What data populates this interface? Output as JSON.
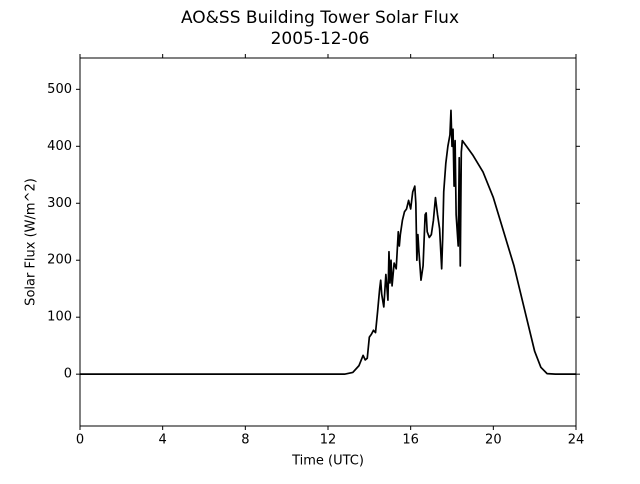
{
  "chart_data": {
    "type": "line",
    "title": "AO&SS Building Tower Solar Flux",
    "subtitle": "2005-12-06",
    "x_label": "Time (UTC)",
    "y_label": "Solar Flux (W/m^2)",
    "x": [
      0,
      12,
      12.8,
      13.2,
      13.5,
      13.7,
      13.8,
      13.9,
      14.0,
      14.1,
      14.2,
      14.3,
      14.4,
      14.5,
      14.55,
      14.6,
      14.7,
      14.8,
      14.9,
      14.95,
      15.0,
      15.05,
      15.1,
      15.2,
      15.3,
      15.4,
      15.45,
      15.5,
      15.6,
      15.7,
      15.8,
      15.9,
      16.0,
      16.1,
      16.2,
      16.25,
      16.3,
      16.35,
      16.4,
      16.5,
      16.6,
      16.7,
      16.75,
      16.8,
      16.9,
      17.0,
      17.1,
      17.2,
      17.3,
      17.4,
      17.5,
      17.55,
      17.6,
      17.7,
      17.8,
      17.9,
      17.95,
      18.0,
      18.05,
      18.1,
      18.15,
      18.2,
      18.3,
      18.35,
      18.4,
      18.45,
      18.5,
      18.7,
      19.0,
      19.5,
      20.0,
      20.5,
      21.0,
      21.5,
      22.0,
      22.3,
      22.6,
      23.0,
      24
    ],
    "values": [
      0,
      0,
      0,
      3,
      15,
      33,
      25,
      28,
      65,
      70,
      77,
      73,
      110,
      150,
      165,
      140,
      118,
      175,
      130,
      215,
      160,
      200,
      155,
      195,
      185,
      250,
      225,
      245,
      270,
      285,
      290,
      305,
      290,
      320,
      330,
      300,
      200,
      245,
      215,
      165,
      190,
      280,
      283,
      250,
      240,
      245,
      270,
      310,
      280,
      255,
      185,
      240,
      320,
      370,
      400,
      420,
      463,
      400,
      430,
      330,
      410,
      280,
      225,
      380,
      190,
      390,
      410,
      400,
      385,
      355,
      310,
      250,
      190,
      115,
      40,
      12,
      1,
      0,
      0
    ],
    "color": "#000000",
    "xlim": [
      0,
      24
    ],
    "xticks": [
      0,
      4,
      8,
      12,
      16,
      20,
      24
    ],
    "ylim": [
      -91,
      555
    ],
    "yticks": [
      0,
      100,
      200,
      300,
      400,
      500
    ]
  }
}
